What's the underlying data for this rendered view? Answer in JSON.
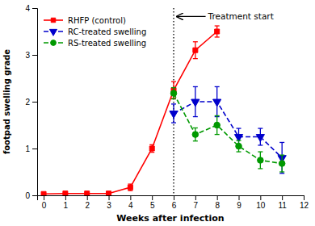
{
  "chart_data": {
    "type": "line",
    "xlabel": "Weeks after infection",
    "ylabel": "footpad swelling grade",
    "xlim": [
      -0.3,
      12
    ],
    "ylim": [
      0,
      4
    ],
    "xticks": [
      0,
      1,
      2,
      3,
      4,
      5,
      6,
      7,
      8,
      9,
      10,
      11,
      12
    ],
    "yticks": [
      0,
      1,
      2,
      3,
      4
    ],
    "grid": false,
    "legend": "upper left",
    "series": [
      {
        "name": "RHFP (control)",
        "color": "#ff0000",
        "marker": "square",
        "line_style": "solid",
        "x": [
          0,
          1,
          2,
          3,
          4,
          5,
          6,
          7,
          8
        ],
        "values": [
          0.03,
          0.04,
          0.04,
          0.04,
          0.17,
          1.0,
          2.25,
          3.1,
          3.5
        ],
        "errors": [
          0.02,
          0.02,
          0.02,
          0.02,
          0.07,
          0.08,
          0.18,
          0.18,
          0.12
        ]
      },
      {
        "name": "RC-treated swelling",
        "color": "#0000cc",
        "marker": "triangle-down",
        "line_style": "dashed",
        "x": [
          6,
          7,
          8,
          9,
          10,
          11
        ],
        "values": [
          1.75,
          2.0,
          2.0,
          1.25,
          1.25,
          0.8
        ],
        "errors": [
          0.2,
          0.32,
          0.32,
          0.18,
          0.18,
          0.33
        ]
      },
      {
        "name": "RS-treated swelling",
        "color": "#009900",
        "marker": "circle",
        "line_style": "dashed",
        "x": [
          6,
          7,
          8,
          9,
          10,
          11
        ],
        "values": [
          2.18,
          1.3,
          1.5,
          1.05,
          0.75,
          0.68
        ],
        "errors": [
          0.12,
          0.14,
          0.2,
          0.12,
          0.18,
          0.18
        ]
      }
    ],
    "vline": 6,
    "annotations": [
      {
        "text": "Treatment start",
        "x": 9.1,
        "y": 3.82,
        "arrow_x": 6.15,
        "arrow_y": 3.82
      }
    ]
  }
}
